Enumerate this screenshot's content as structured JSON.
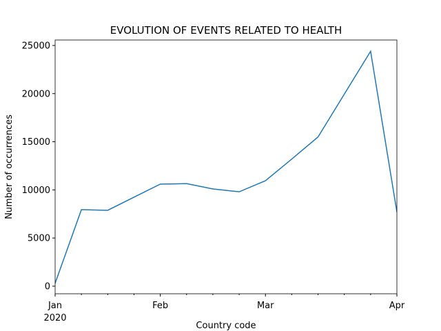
{
  "chart_data": {
    "type": "line",
    "title": "EVOLUTION OF EVENTS RELATED TO HEALTH",
    "x_label": "Country code",
    "y_label": "Number of occurrences",
    "x": [
      0,
      1,
      2,
      3,
      4,
      5,
      6,
      7,
      8,
      9,
      10,
      11,
      12,
      13
    ],
    "series": [
      {
        "name": "occurrences",
        "color": "#1f77b4",
        "values": [
          300,
          7950,
          7880,
          9240,
          10600,
          10650,
          10100,
          9800,
          10950,
          13200,
          15500,
          19950,
          24400,
          7700
        ]
      }
    ],
    "xlim": [
      0,
      13
    ],
    "xticks": [
      {
        "value": 0,
        "label": "Jan"
      },
      {
        "value": 4,
        "label": "Feb"
      },
      {
        "value": 8,
        "label": "Mar"
      },
      {
        "value": 13,
        "label": "Apr"
      }
    ],
    "x_year_label": "2020",
    "xminorticks": [
      1,
      2,
      3,
      5,
      6,
      7,
      9,
      10,
      11,
      12
    ],
    "ylim": [
      -790,
      25570
    ],
    "yticks": [
      0,
      5000,
      10000,
      15000,
      20000,
      25000
    ]
  }
}
